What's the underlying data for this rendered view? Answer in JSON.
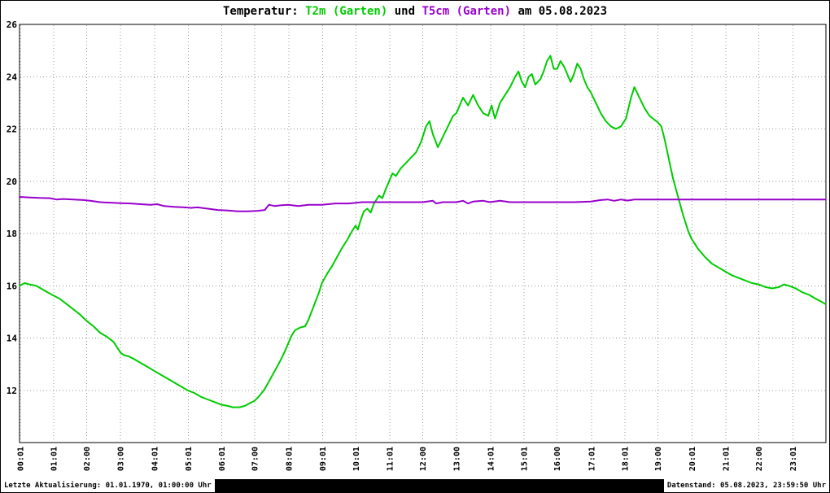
{
  "title": {
    "prefix": "Temperatur: ",
    "t2m": "T2m (Garten)",
    "middle": " und ",
    "t5cm": "T5cm (Garten)",
    "suffix": " am 05.08.2023"
  },
  "footer": {
    "last_update": "Letzte Aktualisierung: 01.01.1970, 01:00:00 Uhr",
    "data_state": "Datenstand: 05.08.2023, 23:59:50 Uhr"
  },
  "colors": {
    "t2m": "#00cc00",
    "t5cm": "#9900cc",
    "grid": "#999999",
    "frame": "#000000",
    "background": "#ffffff",
    "text": "#000000"
  },
  "chart_data": {
    "type": "line",
    "title": "Temperatur: T2m (Garten) und T5cm (Garten) am 05.08.2023",
    "xlabel": "",
    "ylabel": "",
    "ylim": [
      10,
      26
    ],
    "xlim_hours": [
      0,
      24
    ],
    "grid": "dotted",
    "legend_position": "title",
    "y_ticks": [
      26,
      24,
      22,
      20,
      18,
      16,
      14,
      12
    ],
    "x_ticks": [
      {
        "t": 0.02,
        "label": "00:01"
      },
      {
        "t": 1.02,
        "label": "01:01"
      },
      {
        "t": 2.0,
        "label": "02:00"
      },
      {
        "t": 3.0,
        "label": "03:00"
      },
      {
        "t": 4.02,
        "label": "04:01"
      },
      {
        "t": 5.02,
        "label": "05:01"
      },
      {
        "t": 6.02,
        "label": "06:01"
      },
      {
        "t": 7.0,
        "label": "07:00"
      },
      {
        "t": 8.02,
        "label": "08:01"
      },
      {
        "t": 9.02,
        "label": "09:01"
      },
      {
        "t": 10.02,
        "label": "10:01"
      },
      {
        "t": 11.02,
        "label": "11:01"
      },
      {
        "t": 12.0,
        "label": "12:00"
      },
      {
        "t": 13.0,
        "label": "13:00"
      },
      {
        "t": 14.02,
        "label": "14:01"
      },
      {
        "t": 15.02,
        "label": "15:01"
      },
      {
        "t": 16.0,
        "label": "16:00"
      },
      {
        "t": 17.02,
        "label": "17:01"
      },
      {
        "t": 18.02,
        "label": "18:01"
      },
      {
        "t": 19.0,
        "label": "19:00"
      },
      {
        "t": 20.02,
        "label": "20:01"
      },
      {
        "t": 21.02,
        "label": "21:01"
      },
      {
        "t": 22.0,
        "label": "22:00"
      },
      {
        "t": 23.02,
        "label": "23:01"
      }
    ],
    "series": [
      {
        "key": "t2m",
        "name": "T2m (Garten)",
        "color": "#00cc00",
        "points": [
          [
            0.0,
            16.0
          ],
          [
            0.15,
            16.1
          ],
          [
            0.3,
            16.05
          ],
          [
            0.5,
            16.0
          ],
          [
            0.7,
            15.85
          ],
          [
            0.9,
            15.7
          ],
          [
            1.05,
            15.6
          ],
          [
            1.2,
            15.5
          ],
          [
            1.4,
            15.3
          ],
          [
            1.6,
            15.1
          ],
          [
            1.8,
            14.9
          ],
          [
            2.0,
            14.65
          ],
          [
            2.2,
            14.45
          ],
          [
            2.4,
            14.2
          ],
          [
            2.6,
            14.05
          ],
          [
            2.8,
            13.85
          ],
          [
            3.0,
            13.45
          ],
          [
            3.1,
            13.35
          ],
          [
            3.25,
            13.3
          ],
          [
            3.4,
            13.2
          ],
          [
            3.6,
            13.05
          ],
          [
            3.8,
            12.9
          ],
          [
            4.0,
            12.75
          ],
          [
            4.2,
            12.6
          ],
          [
            4.4,
            12.45
          ],
          [
            4.6,
            12.3
          ],
          [
            4.8,
            12.15
          ],
          [
            5.0,
            12.0
          ],
          [
            5.2,
            11.9
          ],
          [
            5.4,
            11.75
          ],
          [
            5.6,
            11.65
          ],
          [
            5.8,
            11.55
          ],
          [
            6.0,
            11.45
          ],
          [
            6.2,
            11.4
          ],
          [
            6.35,
            11.35
          ],
          [
            6.55,
            11.35
          ],
          [
            6.7,
            11.4
          ],
          [
            6.85,
            11.5
          ],
          [
            7.0,
            11.6
          ],
          [
            7.15,
            11.8
          ],
          [
            7.3,
            12.05
          ],
          [
            7.45,
            12.4
          ],
          [
            7.6,
            12.75
          ],
          [
            7.75,
            13.1
          ],
          [
            7.9,
            13.5
          ],
          [
            8.0,
            13.8
          ],
          [
            8.1,
            14.1
          ],
          [
            8.2,
            14.3
          ],
          [
            8.35,
            14.4
          ],
          [
            8.5,
            14.45
          ],
          [
            8.6,
            14.7
          ],
          [
            8.75,
            15.2
          ],
          [
            8.9,
            15.7
          ],
          [
            9.0,
            16.1
          ],
          [
            9.15,
            16.45
          ],
          [
            9.3,
            16.75
          ],
          [
            9.45,
            17.1
          ],
          [
            9.6,
            17.45
          ],
          [
            9.75,
            17.75
          ],
          [
            9.9,
            18.1
          ],
          [
            10.0,
            18.3
          ],
          [
            10.07,
            18.15
          ],
          [
            10.15,
            18.5
          ],
          [
            10.25,
            18.85
          ],
          [
            10.35,
            18.95
          ],
          [
            10.45,
            18.8
          ],
          [
            10.55,
            19.15
          ],
          [
            10.7,
            19.45
          ],
          [
            10.8,
            19.35
          ],
          [
            10.9,
            19.7
          ],
          [
            11.0,
            20.0
          ],
          [
            11.1,
            20.3
          ],
          [
            11.2,
            20.2
          ],
          [
            11.35,
            20.5
          ],
          [
            11.5,
            20.7
          ],
          [
            11.65,
            20.9
          ],
          [
            11.8,
            21.1
          ],
          [
            11.95,
            21.5
          ],
          [
            12.1,
            22.1
          ],
          [
            12.2,
            22.3
          ],
          [
            12.3,
            21.8
          ],
          [
            12.45,
            21.3
          ],
          [
            12.6,
            21.7
          ],
          [
            12.75,
            22.1
          ],
          [
            12.9,
            22.5
          ],
          [
            13.0,
            22.6
          ],
          [
            13.1,
            22.9
          ],
          [
            13.2,
            23.2
          ],
          [
            13.35,
            22.9
          ],
          [
            13.5,
            23.3
          ],
          [
            13.65,
            22.9
          ],
          [
            13.8,
            22.6
          ],
          [
            13.95,
            22.5
          ],
          [
            14.05,
            22.9
          ],
          [
            14.15,
            22.4
          ],
          [
            14.3,
            23.0
          ],
          [
            14.45,
            23.3
          ],
          [
            14.6,
            23.6
          ],
          [
            14.75,
            24.0
          ],
          [
            14.85,
            24.2
          ],
          [
            14.95,
            23.8
          ],
          [
            15.05,
            23.6
          ],
          [
            15.15,
            24.0
          ],
          [
            15.25,
            24.1
          ],
          [
            15.35,
            23.7
          ],
          [
            15.5,
            23.9
          ],
          [
            15.6,
            24.2
          ],
          [
            15.7,
            24.6
          ],
          [
            15.8,
            24.8
          ],
          [
            15.9,
            24.3
          ],
          [
            16.0,
            24.3
          ],
          [
            16.1,
            24.6
          ],
          [
            16.2,
            24.4
          ],
          [
            16.3,
            24.1
          ],
          [
            16.4,
            23.8
          ],
          [
            16.5,
            24.1
          ],
          [
            16.6,
            24.5
          ],
          [
            16.7,
            24.3
          ],
          [
            16.8,
            23.9
          ],
          [
            16.9,
            23.6
          ],
          [
            17.0,
            23.4
          ],
          [
            17.15,
            23.0
          ],
          [
            17.3,
            22.6
          ],
          [
            17.45,
            22.3
          ],
          [
            17.6,
            22.1
          ],
          [
            17.75,
            22.0
          ],
          [
            17.9,
            22.1
          ],
          [
            18.05,
            22.4
          ],
          [
            18.2,
            23.2
          ],
          [
            18.3,
            23.6
          ],
          [
            18.45,
            23.2
          ],
          [
            18.6,
            22.8
          ],
          [
            18.75,
            22.5
          ],
          [
            18.9,
            22.35
          ],
          [
            19.0,
            22.25
          ],
          [
            19.1,
            22.1
          ],
          [
            19.2,
            21.6
          ],
          [
            19.3,
            21.0
          ],
          [
            19.45,
            20.1
          ],
          [
            19.6,
            19.4
          ],
          [
            19.75,
            18.7
          ],
          [
            19.9,
            18.1
          ],
          [
            20.0,
            17.8
          ],
          [
            20.2,
            17.4
          ],
          [
            20.4,
            17.1
          ],
          [
            20.6,
            16.85
          ],
          [
            20.8,
            16.7
          ],
          [
            21.0,
            16.55
          ],
          [
            21.2,
            16.4
          ],
          [
            21.4,
            16.3
          ],
          [
            21.6,
            16.2
          ],
          [
            21.8,
            16.1
          ],
          [
            22.0,
            16.05
          ],
          [
            22.2,
            15.95
          ],
          [
            22.4,
            15.9
          ],
          [
            22.6,
            15.95
          ],
          [
            22.75,
            16.05
          ],
          [
            22.9,
            16.0
          ],
          [
            23.1,
            15.9
          ],
          [
            23.3,
            15.75
          ],
          [
            23.5,
            15.65
          ],
          [
            23.7,
            15.5
          ],
          [
            23.85,
            15.4
          ],
          [
            23.98,
            15.3
          ]
        ]
      },
      {
        "key": "t5cm",
        "name": "T5cm (Garten)",
        "color": "#9900cc",
        "points": [
          [
            0.0,
            19.4
          ],
          [
            0.3,
            19.38
          ],
          [
            0.6,
            19.36
          ],
          [
            0.9,
            19.35
          ],
          [
            1.1,
            19.3
          ],
          [
            1.3,
            19.32
          ],
          [
            1.6,
            19.3
          ],
          [
            1.9,
            19.28
          ],
          [
            2.1,
            19.25
          ],
          [
            2.4,
            19.2
          ],
          [
            2.7,
            19.18
          ],
          [
            3.0,
            19.16
          ],
          [
            3.3,
            19.15
          ],
          [
            3.6,
            19.12
          ],
          [
            3.9,
            19.1
          ],
          [
            4.1,
            19.12
          ],
          [
            4.3,
            19.05
          ],
          [
            4.6,
            19.02
          ],
          [
            4.9,
            19.0
          ],
          [
            5.1,
            18.98
          ],
          [
            5.3,
            19.0
          ],
          [
            5.6,
            18.95
          ],
          [
            5.9,
            18.9
          ],
          [
            6.2,
            18.88
          ],
          [
            6.5,
            18.85
          ],
          [
            6.8,
            18.85
          ],
          [
            7.1,
            18.87
          ],
          [
            7.3,
            18.9
          ],
          [
            7.42,
            19.1
          ],
          [
            7.6,
            19.05
          ],
          [
            7.8,
            19.08
          ],
          [
            8.0,
            19.1
          ],
          [
            8.3,
            19.05
          ],
          [
            8.6,
            19.1
          ],
          [
            9.0,
            19.1
          ],
          [
            9.4,
            19.15
          ],
          [
            9.8,
            19.15
          ],
          [
            10.2,
            19.2
          ],
          [
            10.6,
            19.2
          ],
          [
            11.0,
            19.2
          ],
          [
            11.5,
            19.2
          ],
          [
            12.0,
            19.2
          ],
          [
            12.3,
            19.25
          ],
          [
            12.4,
            19.15
          ],
          [
            12.6,
            19.2
          ],
          [
            13.0,
            19.2
          ],
          [
            13.2,
            19.25
          ],
          [
            13.35,
            19.15
          ],
          [
            13.5,
            19.22
          ],
          [
            13.8,
            19.25
          ],
          [
            14.0,
            19.2
          ],
          [
            14.3,
            19.25
          ],
          [
            14.6,
            19.2
          ],
          [
            15.0,
            19.2
          ],
          [
            15.5,
            19.2
          ],
          [
            16.0,
            19.2
          ],
          [
            16.5,
            19.2
          ],
          [
            17.0,
            19.22
          ],
          [
            17.3,
            19.28
          ],
          [
            17.5,
            19.3
          ],
          [
            17.7,
            19.25
          ],
          [
            17.9,
            19.3
          ],
          [
            18.1,
            19.26
          ],
          [
            18.3,
            19.3
          ],
          [
            18.6,
            19.3
          ],
          [
            19.0,
            19.3
          ],
          [
            19.5,
            19.3
          ],
          [
            20.0,
            19.3
          ],
          [
            20.5,
            19.3
          ],
          [
            21.0,
            19.3
          ],
          [
            21.5,
            19.3
          ],
          [
            22.0,
            19.3
          ],
          [
            22.5,
            19.3
          ],
          [
            23.0,
            19.3
          ],
          [
            23.5,
            19.3
          ],
          [
            23.98,
            19.3
          ]
        ]
      }
    ]
  }
}
